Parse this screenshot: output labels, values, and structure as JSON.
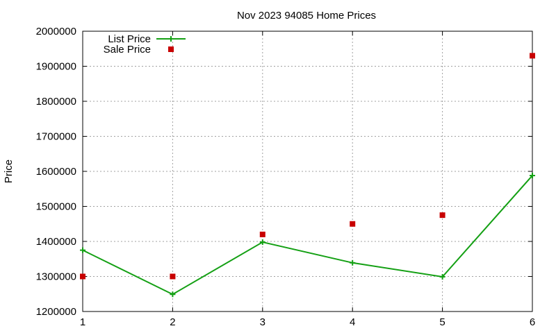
{
  "chart_data": {
    "type": "line",
    "title": "Nov 2023 94085 Home Prices",
    "xlabel": "",
    "ylabel": "Price",
    "xlim": [
      1,
      6
    ],
    "ylim": [
      1200000,
      2000000
    ],
    "x_ticks": [
      "1",
      "2",
      "3",
      "4",
      "5",
      "6"
    ],
    "y_ticks": [
      "1200000",
      "1300000",
      "1400000",
      "1500000",
      "1600000",
      "1700000",
      "1800000",
      "1900000",
      "2000000"
    ],
    "grid": true,
    "legend_position": "top-left",
    "series": [
      {
        "name": "List Price",
        "style": "line+plus",
        "color": "#14a014",
        "x": [
          1,
          2,
          3,
          4,
          5,
          6
        ],
        "values": [
          1375000,
          1249000,
          1398000,
          1339000,
          1299000,
          1588000
        ]
      },
      {
        "name": "Sale Price",
        "style": "square-points",
        "color": "#c80000",
        "x": [
          1,
          2,
          3,
          4,
          5,
          6
        ],
        "values": [
          1300000,
          1300000,
          1420000,
          1450000,
          1475000,
          1930000
        ]
      }
    ]
  }
}
